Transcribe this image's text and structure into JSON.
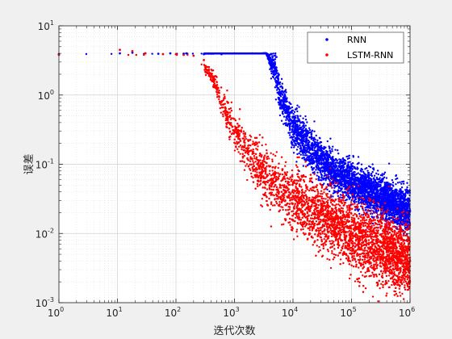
{
  "chart_data": {
    "type": "scatter",
    "xscale": "log",
    "yscale": "log",
    "xlim": [
      1,
      1000000
    ],
    "ylim": [
      0.001,
      10
    ],
    "xlabel": "迭代次数",
    "ylabel": "误差",
    "grid": true,
    "minor_grid": true,
    "legend_position": "top-right",
    "x_tick_labels": [
      {
        "base": "10",
        "exp": "0"
      },
      {
        "base": "10",
        "exp": "1"
      },
      {
        "base": "10",
        "exp": "2"
      },
      {
        "base": "10",
        "exp": "3"
      },
      {
        "base": "10",
        "exp": "4"
      },
      {
        "base": "10",
        "exp": "5"
      },
      {
        "base": "10",
        "exp": "6"
      }
    ],
    "y_tick_labels": [
      {
        "base": "10",
        "exp": "-3"
      },
      {
        "base": "10",
        "exp": "-2"
      },
      {
        "base": "10",
        "exp": "-1"
      },
      {
        "base": "10",
        "exp": "0"
      },
      {
        "base": "10",
        "exp": "1"
      }
    ],
    "series": [
      {
        "name": "RNN",
        "color": "#0000ff",
        "points": [
          [
            1,
            3.9
          ],
          [
            11,
            4.0
          ],
          [
            18,
            4.1
          ],
          [
            30,
            4.0
          ],
          [
            50,
            3.95
          ],
          [
            80,
            4.0
          ],
          [
            150,
            4.0
          ],
          [
            300,
            3.9
          ],
          [
            600,
            3.9
          ],
          [
            1000,
            4.0
          ],
          [
            2000,
            4.0
          ],
          [
            3000,
            4.0
          ],
          [
            4000,
            3.8
          ],
          [
            5000,
            2.0
          ],
          [
            6000,
            1.0
          ],
          [
            8000,
            0.55
          ],
          [
            10000,
            0.35
          ],
          [
            20000,
            0.17
          ],
          [
            50000,
            0.08
          ],
          [
            100000,
            0.06
          ],
          [
            300000,
            0.035
          ],
          [
            1000000,
            0.021
          ]
        ],
        "band_center": [
          [
            1,
            3.9
          ],
          [
            3500,
            4.0
          ],
          [
            5000,
            2.2
          ],
          [
            6000,
            1.0
          ],
          [
            10000,
            0.35
          ],
          [
            20000,
            0.16
          ],
          [
            50000,
            0.075
          ],
          [
            100000,
            0.055
          ],
          [
            300000,
            0.033
          ],
          [
            1000000,
            0.02
          ]
        ],
        "band_spread": [
          [
            1,
            0.0
          ],
          [
            3500,
            0.0
          ],
          [
            5000,
            0.25
          ],
          [
            10000,
            0.28
          ],
          [
            100000,
            0.28
          ],
          [
            1000000,
            0.3
          ]
        ]
      },
      {
        "name": "LSTM-RNN",
        "color": "#ff0000",
        "points": [
          [
            1,
            3.8
          ],
          [
            11,
            4.5
          ],
          [
            18,
            4.3
          ],
          [
            30,
            4.0
          ],
          [
            60,
            3.9
          ],
          [
            100,
            3.9
          ],
          [
            200,
            3.7
          ],
          [
            300,
            3.2
          ],
          [
            400,
            2.0
          ],
          [
            500,
            1.2
          ],
          [
            700,
            0.6
          ],
          [
            1000,
            0.3
          ],
          [
            2000,
            0.12
          ],
          [
            5000,
            0.05
          ],
          [
            10000,
            0.035
          ],
          [
            30000,
            0.02
          ],
          [
            100000,
            0.01
          ],
          [
            300000,
            0.006
          ],
          [
            1000000,
            0.004
          ]
        ],
        "band_center": [
          [
            1,
            3.8
          ],
          [
            200,
            3.8
          ],
          [
            400,
            2.0
          ],
          [
            700,
            0.6
          ],
          [
            1000,
            0.3
          ],
          [
            2000,
            0.12
          ],
          [
            5000,
            0.05
          ],
          [
            10000,
            0.032
          ],
          [
            30000,
            0.018
          ],
          [
            100000,
            0.01
          ],
          [
            300000,
            0.006
          ],
          [
            1000000,
            0.004
          ]
        ],
        "band_spread": [
          [
            1,
            0.0
          ],
          [
            200,
            0.0
          ],
          [
            500,
            0.15
          ],
          [
            1000,
            0.3
          ],
          [
            10000,
            0.45
          ],
          [
            100000,
            0.5
          ],
          [
            1000000,
            0.5
          ]
        ]
      }
    ]
  }
}
